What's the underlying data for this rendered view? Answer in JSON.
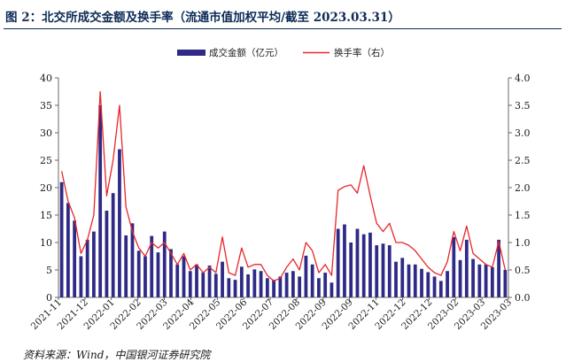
{
  "title": "图 2：北交所成交金额及换手率（流通市值加权平均/截至 2023.03.31）",
  "source": "资料来源：Wind，中国银河证券研究院",
  "chart_data": {
    "type": "bar",
    "legend_position": "top-center",
    "grid": false,
    "y_left": {
      "min": 0,
      "max": 40,
      "ticks": [
        "0",
        "5",
        "10",
        "15",
        "20",
        "25",
        "30",
        "35",
        "40"
      ]
    },
    "y_right": {
      "min": 0,
      "max": 4,
      "ticks": [
        "0.0",
        "0.5",
        "1.0",
        "1.5",
        "2.0",
        "2.5",
        "3.0",
        "3.5",
        "4.0"
      ]
    },
    "x_tick_labels": [
      "2021-11",
      "2021-12",
      "2022-01",
      "2022-02",
      "2022-03",
      "2022-04",
      "2022-05",
      "2022-06",
      "2022-07",
      "2022-08",
      "2022-09",
      "2022-09",
      "2022-11",
      "2022-12",
      "2022-12",
      "2023-02",
      "2023-03",
      "2023-03"
    ],
    "series": [
      {
        "name": "成交金额（亿元）",
        "type": "bar",
        "axis": "left",
        "color": "#2e2a86",
        "values": [
          21,
          17.2,
          14,
          7.5,
          10.5,
          12,
          35,
          15.8,
          19,
          27,
          11.3,
          13.5,
          8.5,
          7.5,
          11.2,
          8.2,
          12,
          8.8,
          6,
          7.5,
          4.8,
          6,
          4.5,
          5.8,
          4.3,
          6.5,
          3.5,
          3.2,
          5.6,
          4.2,
          5.1,
          4.8,
          3.5,
          3.2,
          3.8,
          4.5,
          4.8,
          3.8,
          7.6,
          6,
          3.5,
          4.5,
          2.7,
          12.5,
          13.3,
          10,
          12.5,
          11.5,
          11.8,
          9.5,
          9.8,
          9.5,
          6.5,
          7.2,
          6,
          6,
          5.2,
          4.6,
          3.8,
          3,
          4.8,
          11,
          6.8,
          10.5,
          7,
          6,
          6,
          5.5,
          10.5,
          5
        ]
      },
      {
        "name": "换手率（右）",
        "type": "line",
        "axis": "right",
        "color": "#e8262a",
        "values": [
          2.3,
          1.75,
          1.45,
          0.8,
          1.05,
          1.5,
          3.75,
          1.85,
          2.5,
          3.5,
          1.65,
          1.2,
          0.9,
          0.75,
          1.0,
          0.9,
          1.0,
          0.8,
          0.6,
          0.8,
          0.5,
          0.6,
          0.45,
          0.55,
          0.45,
          1.1,
          0.45,
          0.4,
          0.9,
          0.55,
          0.6,
          0.6,
          0.4,
          0.3,
          0.35,
          0.55,
          0.7,
          0.5,
          1.0,
          0.85,
          0.45,
          0.6,
          0.4,
          1.95,
          2.02,
          2.05,
          1.9,
          2.4,
          1.85,
          1.35,
          1.2,
          1.35,
          1.0,
          1.0,
          0.95,
          0.85,
          0.7,
          0.55,
          0.45,
          0.4,
          0.65,
          1.2,
          0.85,
          1.3,
          0.8,
          0.7,
          0.6,
          0.55,
          1.02,
          0.5
        ]
      }
    ]
  }
}
